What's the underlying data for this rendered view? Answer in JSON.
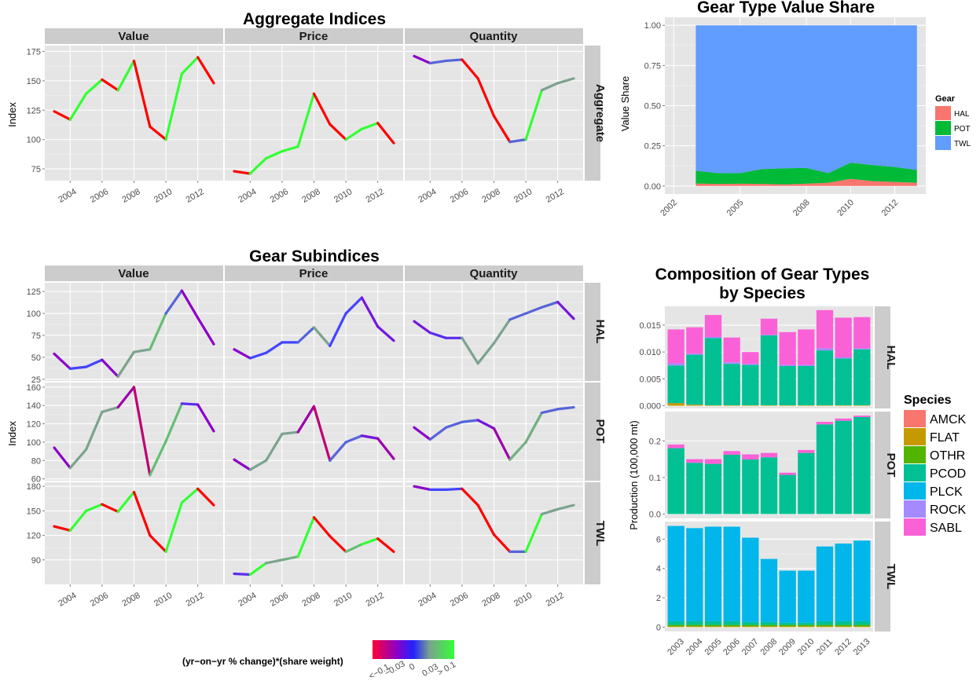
{
  "colors": {
    "neg_strong": "#FF0000",
    "neg_mid": "#8B00C8",
    "zero": "#4444FF",
    "pos_mid": "#7BA38E",
    "pos_strong": "#33FF33",
    "HAL": "#F8766D",
    "POT": "#00BA38",
    "TWL": "#619CFF",
    "AMCK": "#F8766D",
    "FLAT": "#C49A00",
    "OTHR": "#53B400",
    "PCOD": "#00C094",
    "PLCK": "#00B6EB",
    "ROCK": "#A58AFF",
    "SABL": "#FB61D7"
  },
  "aggregate": {
    "title": "Aggregate Indices",
    "ylabel": "Index",
    "facets": [
      "Value",
      "Price",
      "Quantity"
    ],
    "row_label": "Aggregate",
    "x_ticks": [
      "2004",
      "2006",
      "2008",
      "2010",
      "2012"
    ],
    "y_ticks": [
      "75",
      "100",
      "125",
      "150",
      "175"
    ],
    "ylim": [
      65,
      180
    ],
    "years": [
      2003,
      2004,
      2005,
      2006,
      2007,
      2008,
      2009,
      2010,
      2011,
      2012,
      2013
    ]
  },
  "subindices": {
    "title": "Gear Subindices",
    "ylabel": "Index",
    "facets": [
      "Value",
      "Price",
      "Quantity"
    ],
    "rows": [
      {
        "label": "HAL",
        "y_ticks": [
          "25",
          "50",
          "75",
          "100",
          "125"
        ],
        "ylim": [
          23,
          135
        ]
      },
      {
        "label": "POT",
        "y_ticks": [
          "60",
          "80",
          "100",
          "120",
          "140",
          "160"
        ],
        "ylim": [
          58,
          165
        ]
      },
      {
        "label": "TWL",
        "y_ticks": [
          "90",
          "120",
          "150",
          "180"
        ],
        "ylim": [
          60,
          185
        ]
      }
    ],
    "x_ticks": [
      "2004",
      "2006",
      "2008",
      "2010",
      "2012"
    ]
  },
  "color_legend": {
    "title": "(yr−on−yr % change)*(share weight)",
    "labels": [
      "<−0.1",
      "−0.03",
      "0",
      "0.03",
      "> 0.1"
    ]
  },
  "share_chart": {
    "title": "Gear Type Value Share",
    "ylabel": "Value Share",
    "y_ticks": [
      "0.00",
      "0.25",
      "0.50",
      "0.75",
      "1.00"
    ],
    "x_ticks": [
      "2002",
      "2005",
      "2008",
      "2010",
      "2012"
    ],
    "legend_title": "Gear",
    "legend_items": [
      "HAL",
      "POT",
      "TWL"
    ]
  },
  "composition": {
    "title_line1": "Composition of Gear Types",
    "title_line2": "by Species",
    "ylabel": "Production (100,000 mt)",
    "x_ticks": [
      "2003",
      "2004",
      "2005",
      "2006",
      "2007",
      "2008",
      "2009",
      "2010",
      "2011",
      "2012",
      "2013"
    ],
    "legend_title": "Species",
    "legend_items": [
      "AMCK",
      "FLAT",
      "OTHR",
      "PCOD",
      "PLCK",
      "ROCK",
      "SABL"
    ],
    "rows": [
      {
        "label": "HAL",
        "y_ticks": [
          "0.000",
          "0.005",
          "0.010",
          "0.015"
        ],
        "ylim": [
          -0.0005,
          0.0185
        ]
      },
      {
        "label": "POT",
        "y_ticks": [
          "0.0",
          "0.1",
          "0.2"
        ],
        "ylim": [
          -0.012,
          0.28
        ]
      },
      {
        "label": "TWL",
        "y_ticks": [
          "0",
          "2",
          "4",
          "6"
        ],
        "ylim": [
          -0.3,
          7.2
        ]
      }
    ]
  },
  "chart_data": [
    {
      "type": "line",
      "title": "Aggregate Indices",
      "ylabel": "Index",
      "x": [
        2003,
        2004,
        2005,
        2006,
        2007,
        2008,
        2009,
        2010,
        2011,
        2012,
        2013
      ],
      "series": [
        {
          "name": "Value",
          "values": [
            124,
            117,
            139,
            151,
            142,
            167,
            111,
            100,
            156,
            170,
            148
          ],
          "change": [
            0,
            -0.1,
            0.1,
            0.1,
            -0.1,
            0.1,
            -0.1,
            -0.1,
            0.1,
            0.1,
            -0.1
          ]
        },
        {
          "name": "Price",
          "values": [
            73,
            71,
            84,
            90,
            94,
            139,
            113,
            100,
            109,
            114,
            97
          ],
          "change": [
            0,
            -0.1,
            0.1,
            0.1,
            0.1,
            0.1,
            -0.1,
            -0.1,
            0.1,
            0.1,
            -0.1
          ]
        },
        {
          "name": "Quantity",
          "values": [
            171,
            165,
            167,
            168,
            152,
            120,
            98,
            100,
            142,
            148,
            152
          ],
          "change": [
            0,
            -0.03,
            0.01,
            0.01,
            -0.1,
            -0.1,
            -0.1,
            0.01,
            0.1,
            0.03,
            0.03
          ]
        }
      ]
    },
    {
      "type": "line",
      "title": "Gear Subindices",
      "x": [
        2003,
        2004,
        2005,
        2006,
        2007,
        2008,
        2009,
        2010,
        2011,
        2012,
        2013
      ],
      "series": [
        {
          "name": "HAL Value",
          "values": [
            54,
            37,
            39,
            47,
            28,
            56,
            59,
            100,
            126,
            95,
            65
          ],
          "change": [
            0,
            -0.03,
            0,
            0,
            -0.03,
            0.03,
            0.03,
            0.05,
            0.01,
            -0.03,
            -0.03
          ]
        },
        {
          "name": "HAL Price",
          "values": [
            59,
            49,
            55,
            67,
            67,
            84,
            63,
            100,
            118,
            85,
            69
          ],
          "change": [
            0,
            -0.03,
            0,
            0,
            0,
            0.01,
            0.03,
            0,
            0,
            -0.02,
            -0.02
          ]
        },
        {
          "name": "HAL Quantity",
          "values": [
            91,
            78,
            72,
            72,
            43,
            66,
            93,
            100,
            107,
            113,
            94
          ],
          "change": [
            0,
            -0.02,
            -0.01,
            -0.01,
            0.03,
            0.03,
            0.03,
            0.01,
            0.01,
            0.01,
            -0.02
          ]
        },
        {
          "name": "POT Value",
          "values": [
            94,
            72,
            92,
            133,
            138,
            160,
            64,
            101,
            142,
            141,
            112
          ],
          "change": [
            0,
            -0.03,
            0.03,
            0.03,
            0.03,
            -0.04,
            -0.06,
            0.05,
            0.05,
            -0.01,
            -0.03
          ]
        },
        {
          "name": "POT Price",
          "values": [
            81,
            70,
            80,
            109,
            111,
            139,
            80,
            100,
            107,
            104,
            82
          ],
          "change": [
            0,
            -0.03,
            0.03,
            0.03,
            0.03,
            -0.04,
            -0.06,
            0.01,
            0.01,
            -0.02,
            -0.04
          ]
        },
        {
          "name": "POT Quantity",
          "values": [
            116,
            103,
            116,
            122,
            124,
            115,
            81,
            100,
            132,
            136,
            138
          ],
          "change": [
            0,
            -0.03,
            0.01,
            0.01,
            0.01,
            -0.02,
            -0.04,
            0.04,
            0.04,
            0.01,
            0.01
          ]
        },
        {
          "name": "TWL Value",
          "values": [
            131,
            126,
            150,
            158,
            149,
            173,
            120,
            100,
            160,
            177,
            157
          ],
          "change": [
            0,
            -0.1,
            0.1,
            0.1,
            -0.1,
            0.1,
            -0.1,
            -0.1,
            0.1,
            0.1,
            -0.1
          ]
        },
        {
          "name": "TWL Price",
          "values": [
            73,
            72,
            86,
            90,
            94,
            142,
            119,
            100,
            109,
            116,
            100
          ],
          "change": [
            0,
            -0.01,
            0.1,
            0.03,
            0.04,
            0.1,
            -0.1,
            -0.1,
            0.05,
            0.1,
            -0.1
          ]
        },
        {
          "name": "TWL Quantity",
          "values": [
            180,
            176,
            176,
            177,
            157,
            121,
            100,
            100,
            146,
            152,
            157
          ],
          "change": [
            0,
            -0.03,
            0,
            0,
            -0.1,
            -0.1,
            -0.1,
            0.01,
            0.1,
            0.03,
            0.03
          ]
        }
      ]
    },
    {
      "type": "area",
      "title": "Gear Type Value Share",
      "ylabel": "Value Share",
      "x": [
        2003,
        2004,
        2005,
        2006,
        2007,
        2008,
        2009,
        2010,
        2011,
        2012,
        2013
      ],
      "ylim": [
        0,
        1
      ],
      "series": [
        {
          "name": "HAL",
          "values": [
            0.015,
            0.013,
            0.014,
            0.013,
            0.01,
            0.014,
            0.02,
            0.045,
            0.03,
            0.025,
            0.02
          ]
        },
        {
          "name": "POT",
          "values": [
            0.08,
            0.067,
            0.066,
            0.092,
            0.1,
            0.098,
            0.06,
            0.1,
            0.1,
            0.093,
            0.08
          ]
        },
        {
          "name": "TWL",
          "values": [
            0.905,
            0.92,
            0.92,
            0.895,
            0.89,
            0.888,
            0.92,
            0.855,
            0.87,
            0.882,
            0.9
          ]
        }
      ]
    },
    {
      "type": "bar",
      "title": "Composition of Gear Types by Species",
      "ylabel": "Production (100,000 mt)",
      "categories": [
        "2003",
        "2004",
        "2005",
        "2006",
        "2007",
        "2008",
        "2009",
        "2010",
        "2011",
        "2012",
        "2013"
      ],
      "panels": [
        {
          "name": "HAL",
          "series": [
            {
              "name": "FLAT",
              "values": [
                0.0005,
                0.0002,
                0.0001,
                0.0001,
                0.0001,
                0.0001,
                0.0001,
                0.0001,
                0.0001,
                0.0001,
                0.0001
              ]
            },
            {
              "name": "PCOD",
              "values": [
                0.007,
                0.0093,
                0.0125,
                0.0077,
                0.0075,
                0.013,
                0.0073,
                0.0073,
                0.0102,
                0.0087,
                0.0104
              ]
            },
            {
              "name": "ROCK",
              "values": [
                0.0004,
                0.0002,
                0.0002,
                0.0003,
                0.0002,
                0.0001,
                0.0002,
                0.0002,
                0.0004,
                0.0002,
                0.0002
              ]
            },
            {
              "name": "SABL",
              "values": [
                0.0063,
                0.0049,
                0.0041,
                0.0046,
                0.0022,
                0.003,
                0.0061,
                0.0066,
                0.0071,
                0.0074,
                0.0058
              ]
            }
          ]
        },
        {
          "name": "POT",
          "series": [
            {
              "name": "PCOD",
              "values": [
                0.18,
                0.14,
                0.137,
                0.162,
                0.149,
                0.155,
                0.107,
                0.167,
                0.245,
                0.255,
                0.265
              ]
            },
            {
              "name": "SABL",
              "values": [
                0.01,
                0.01,
                0.013,
                0.01,
                0.014,
                0.012,
                0.006,
                0.008,
                0.007,
                0.006,
                0.004
              ]
            }
          ]
        },
        {
          "name": "TWL",
          "series": [
            {
              "name": "FLAT",
              "values": [
                0.05,
                0.05,
                0.05,
                0.05,
                0.05,
                0.05,
                0.05,
                0.05,
                0.05,
                0.05,
                0.05
              ]
            },
            {
              "name": "OTHR",
              "values": [
                0.1,
                0.1,
                0.1,
                0.1,
                0.1,
                0.1,
                0.1,
                0.1,
                0.1,
                0.1,
                0.1
              ]
            },
            {
              "name": "PCOD",
              "values": [
                0.25,
                0.25,
                0.25,
                0.25,
                0.2,
                0.2,
                0.15,
                0.15,
                0.25,
                0.25,
                0.25
              ]
            },
            {
              "name": "PLCK",
              "values": [
                6.5,
                6.35,
                6.45,
                6.45,
                5.75,
                4.3,
                3.55,
                3.55,
                5.1,
                5.3,
                5.5
              ]
            }
          ]
        }
      ]
    }
  ]
}
